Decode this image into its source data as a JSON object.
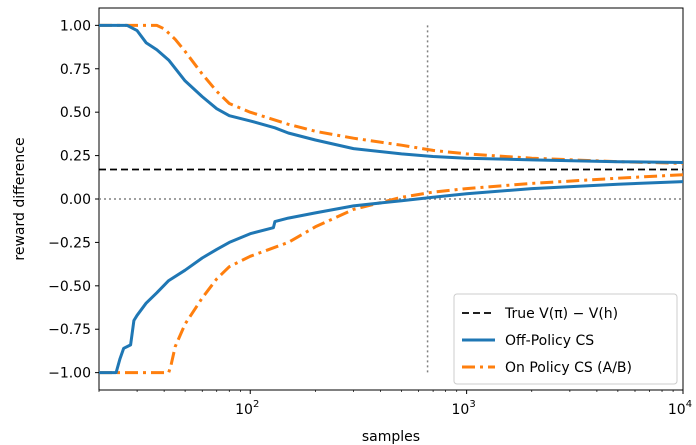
{
  "chart_data": {
    "type": "line",
    "xlabel": "samples",
    "ylabel": "reward difference",
    "xscale": "log",
    "xlim": [
      20,
      10000
    ],
    "ylim": [
      -1.1,
      1.1
    ],
    "yticks": [
      -1.0,
      -0.75,
      -0.5,
      -0.25,
      0.0,
      0.25,
      0.5,
      0.75,
      1.0
    ],
    "ytick_labels": [
      "−1.00",
      "−0.75",
      "−0.50",
      "−0.25",
      "0.00",
      "0.25",
      "0.50",
      "0.75",
      "1.00"
    ],
    "xticks": [
      {
        "value": 100,
        "base": "10",
        "exp": "2"
      },
      {
        "value": 1000,
        "base": "10",
        "exp": "3"
      },
      {
        "value": 10000,
        "base": "10",
        "exp": "4"
      }
    ],
    "vline_x": 660,
    "hline_y": 0.0,
    "true_value": 0.17,
    "legend_position": "lower right",
    "legend": {
      "true": "True V(π) − V(h)",
      "off": "Off-Policy CS",
      "on": "On Policy CS (A/B)"
    },
    "colors": {
      "off": "#1f77b4",
      "on": "#ff7f0e",
      "true": "#000000",
      "ref": "#808080"
    },
    "series": [
      {
        "name": "Off-Policy CS",
        "key": "off",
        "style": "solid",
        "upper": {
          "x": [
            20,
            27,
            30,
            33,
            37,
            42,
            50,
            60,
            70,
            80,
            100,
            130,
            150,
            200,
            300,
            500,
            700,
            1000,
            2000,
            5000,
            10000
          ],
          "y": [
            1.0,
            1.0,
            0.97,
            0.9,
            0.86,
            0.8,
            0.68,
            0.59,
            0.52,
            0.48,
            0.45,
            0.41,
            0.38,
            0.34,
            0.29,
            0.26,
            0.245,
            0.235,
            0.225,
            0.215,
            0.21
          ]
        },
        "lower": {
          "x": [
            20,
            24,
            25,
            26,
            28,
            29,
            30,
            33,
            37,
            42,
            50,
            60,
            70,
            80,
            100,
            128,
            130,
            150,
            200,
            300,
            500,
            700,
            1000,
            2000,
            5000,
            10000
          ],
          "y": [
            -1.0,
            -1.0,
            -0.92,
            -0.86,
            -0.84,
            -0.7,
            -0.67,
            -0.6,
            -0.54,
            -0.47,
            -0.41,
            -0.34,
            -0.29,
            -0.25,
            -0.2,
            -0.165,
            -0.13,
            -0.11,
            -0.08,
            -0.04,
            -0.01,
            0.01,
            0.03,
            0.06,
            0.085,
            0.1
          ]
        }
      },
      {
        "name": "On Policy CS (A/B)",
        "key": "on",
        "style": "dashdot",
        "upper": {
          "x": [
            20,
            37,
            40,
            45,
            50,
            60,
            70,
            80,
            100,
            150,
            200,
            300,
            500,
            700,
            1000,
            2000,
            5000,
            10000
          ],
          "y": [
            1.0,
            1.0,
            0.98,
            0.92,
            0.85,
            0.72,
            0.62,
            0.55,
            0.5,
            0.43,
            0.39,
            0.35,
            0.31,
            0.28,
            0.26,
            0.235,
            0.215,
            0.205
          ]
        },
        "lower": {
          "x": [
            20,
            42,
            43,
            45,
            50,
            60,
            70,
            80,
            100,
            150,
            200,
            300,
            500,
            700,
            1000,
            2000,
            5000,
            10000
          ],
          "y": [
            -1.0,
            -1.0,
            -0.96,
            -0.85,
            -0.72,
            -0.57,
            -0.46,
            -0.39,
            -0.33,
            -0.25,
            -0.16,
            -0.06,
            0.01,
            0.04,
            0.06,
            0.09,
            0.12,
            0.14
          ]
        }
      }
    ]
  }
}
